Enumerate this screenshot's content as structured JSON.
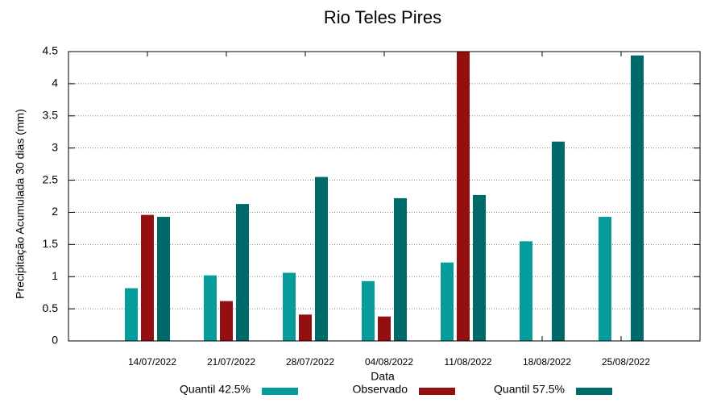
{
  "chart_data": {
    "type": "bar",
    "title": "Rio Teles Pires",
    "x_label": "Data",
    "y_label": "Precipitação Acumulada 30 dias (mm)",
    "categories": [
      "14/07/2022",
      "21/07/2022",
      "28/07/2022",
      "04/08/2022",
      "11/08/2022",
      "18/08/2022",
      "25/08/2022"
    ],
    "series": [
      {
        "name": "Quantil 42.5%",
        "color": "#069c9c",
        "values": [
          0.82,
          1.02,
          1.06,
          0.93,
          1.22,
          1.55,
          1.93
        ]
      },
      {
        "name": "Observado",
        "color": "#941010",
        "values": [
          1.96,
          0.62,
          0.41,
          0.38,
          4.5,
          null,
          null
        ]
      },
      {
        "name": "Quantil 57.5%",
        "color": "#006a6a",
        "values": [
          1.93,
          2.13,
          2.55,
          2.22,
          2.27,
          3.1,
          4.44
        ]
      }
    ],
    "ylim": [
      0,
      4.5
    ],
    "yticks": [
      0,
      0.5,
      1,
      1.5,
      2,
      2.5,
      3,
      3.5,
      4,
      4.5
    ],
    "grid": true,
    "legend": "bottom"
  }
}
